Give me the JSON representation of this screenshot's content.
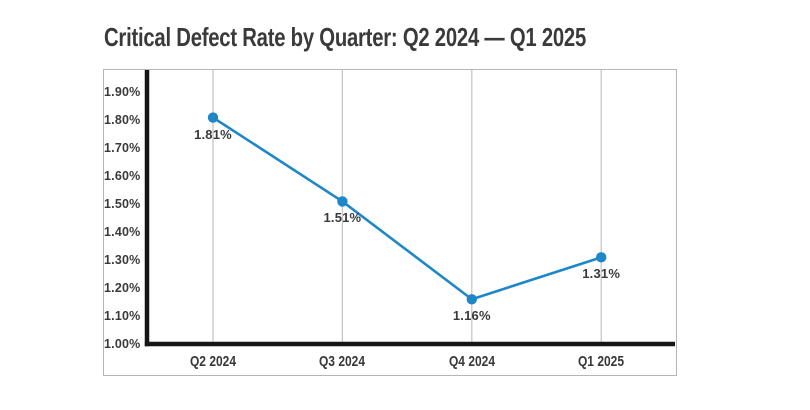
{
  "title": "Critical Defect Rate by Quarter: Q2 2024 — Q1 2025",
  "colors": {
    "line": "#1e87c7",
    "marker": "#1e87c7",
    "axis": "#151515",
    "grid": "#c7c7c7",
    "border": "#b6b6b6",
    "text": "#3a3a3a",
    "background": "#ffffff"
  },
  "chart_data": {
    "type": "line",
    "title": "Critical Defect Rate by Quarter: Q2 2024 — Q1 2025",
    "categories": [
      "Q2 2024",
      "Q3 2024",
      "Q4 2024",
      "Q1 2025"
    ],
    "values": [
      1.81,
      1.51,
      1.16,
      1.31
    ],
    "point_labels": [
      "1.81%",
      "1.51%",
      "1.16%",
      "1.31%"
    ],
    "y_tick_values": [
      1.9,
      1.8,
      1.7,
      1.6,
      1.5,
      1.4,
      1.3,
      1.2,
      1.1,
      1.0
    ],
    "y_tick_labels": [
      "1.90%",
      "1.80%",
      "1.70%",
      "1.60%",
      "1.50%",
      "1.40%",
      "1.30%",
      "1.20%",
      "1.10%",
      "1.00%"
    ],
    "xlabel": "",
    "ylabel": "",
    "ylim": [
      1.0,
      1.98
    ],
    "unit": "%",
    "grid": "vertical-only",
    "legend": "none"
  }
}
